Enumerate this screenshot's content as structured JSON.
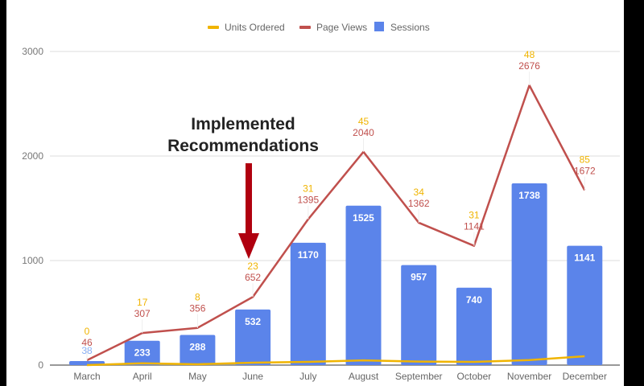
{
  "chart_data": {
    "type": "bar",
    "title": "",
    "xlabel": "",
    "ylabel": "",
    "ylim": [
      0,
      3000
    ],
    "yticks": [
      0,
      1000,
      2000,
      3000
    ],
    "grid": true,
    "legend_position": "top",
    "categories": [
      "March",
      "April",
      "May",
      "June",
      "July",
      "August",
      "September",
      "October",
      "November",
      "December"
    ],
    "series": [
      {
        "name": "Units Ordered",
        "type": "line",
        "color": "#f0b400",
        "values": [
          0,
          17,
          8,
          23,
          31,
          45,
          34,
          31,
          48,
          85
        ]
      },
      {
        "name": "Page Views",
        "type": "line",
        "color": "#c0504d",
        "values": [
          46,
          307,
          356,
          652,
          1395,
          2040,
          1362,
          1141,
          2676,
          1672
        ]
      },
      {
        "name": "Sessions",
        "type": "bar",
        "color": "#5b84ea",
        "values": [
          38,
          233,
          288,
          532,
          1170,
          1525,
          957,
          740,
          1738,
          1141
        ]
      }
    ],
    "annotations": [
      {
        "text_line1": "Implemented",
        "text_line2": "Recommendations",
        "target": "June",
        "arrow_color": "#b0000f"
      }
    ]
  },
  "legend": [
    {
      "label": "Units Ordered",
      "color": "#f0b400",
      "shape": "line"
    },
    {
      "label": "Page Views",
      "color": "#c0504d",
      "shape": "line"
    },
    {
      "label": "Sessions",
      "color": "#5b84ea",
      "shape": "square"
    }
  ],
  "yaxis": {
    "ticks": [
      "0",
      "1000",
      "2000",
      "3000"
    ]
  },
  "annotation": {
    "line1": "Implemented",
    "line2": "Recommendations"
  }
}
